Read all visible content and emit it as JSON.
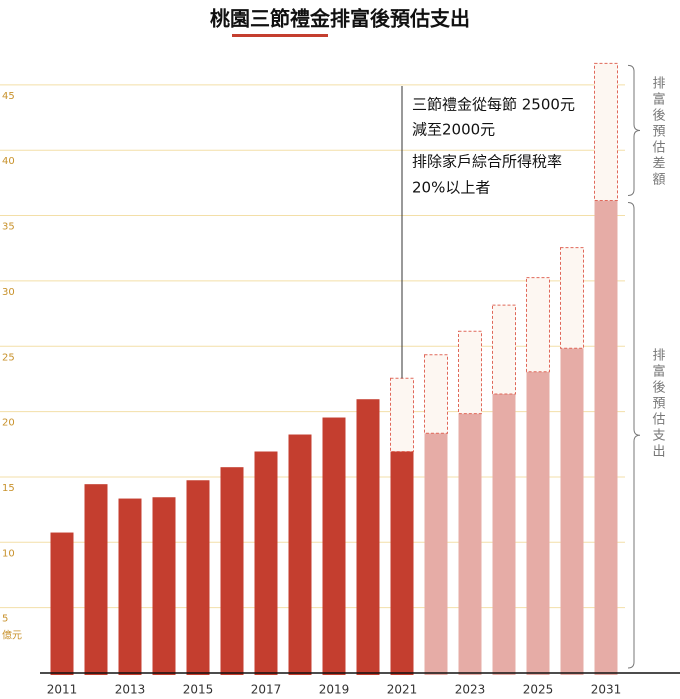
{
  "chart_data": {
    "type": "bar",
    "title": "桃園三節禮金排富後預估支出",
    "y_unit": "億元",
    "categories": [
      "2011",
      null,
      "2013",
      null,
      "2015",
      null,
      "2017",
      null,
      "2019",
      null,
      "2021",
      null,
      "2023",
      null,
      "2025",
      null,
      "2031"
    ],
    "series": [
      {
        "name": "排富後預估支出",
        "colors": [
          "#c43e2f",
          "#c43e2f",
          "#c43e2f",
          "#c43e2f",
          "#c43e2f",
          "#c43e2f",
          "#c43e2f",
          "#c43e2f",
          "#c43e2f",
          "#c43e2f",
          "#c43e2f",
          "#e6aca6",
          "#e6aca6",
          "#e6aca6",
          "#e6aca6",
          "#e6aca6",
          "#e6aca6"
        ],
        "values": [
          10.9,
          14.6,
          13.5,
          13.6,
          14.9,
          15.9,
          17.1,
          18.4,
          19.7,
          21.1,
          17.1,
          18.5,
          20.0,
          21.5,
          23.2,
          25.0,
          36.3
        ]
      },
      {
        "name": "排富後預估差額",
        "color": "#e0685a",
        "fill": "#fdf7f2",
        "values": [
          null,
          null,
          null,
          null,
          null,
          null,
          null,
          null,
          null,
          null,
          5.6,
          6.0,
          6.3,
          6.8,
          7.2,
          7.7,
          10.5
        ]
      }
    ],
    "annotations": [
      "三節禮金從每節 2500元",
      "減至2000元",
      "排除家戶綜合所得稅率",
      "20%以上者"
    ],
    "ylim": [
      0,
      50
    ],
    "yticks": [
      5,
      10,
      15,
      20,
      25,
      30,
      35,
      40,
      45
    ],
    "grid": true
  }
}
